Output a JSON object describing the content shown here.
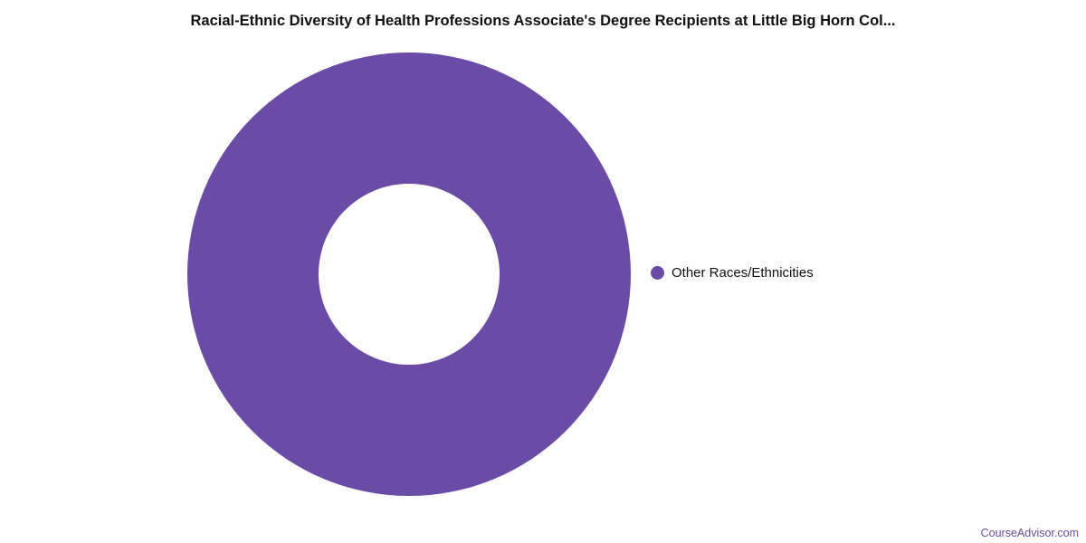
{
  "header": {
    "title": "Racial-Ethnic Diversity of Health Professions Associate's Degree Recipients at Little Big Horn Col..."
  },
  "footer": {
    "link_text": "CourseAdvisor.com"
  },
  "colors": {
    "accent_purple": "#6A4CA6",
    "title_text": "#111111",
    "background": "#FFFFFF"
  },
  "chart_data": {
    "type": "pie",
    "subtype": "donut",
    "title": "Racial-Ethnic Diversity of Health Professions Associate's Degree Recipients at Little Big Horn Col...",
    "categories": [
      "Other Races/Ethnicities"
    ],
    "values": [
      100
    ],
    "series": [
      {
        "name": "Other Races/Ethnicities",
        "value": 100,
        "color": "#6A4CA6"
      }
    ],
    "legend_position": "right",
    "inner_radius_pct": 41,
    "units": "percent"
  }
}
